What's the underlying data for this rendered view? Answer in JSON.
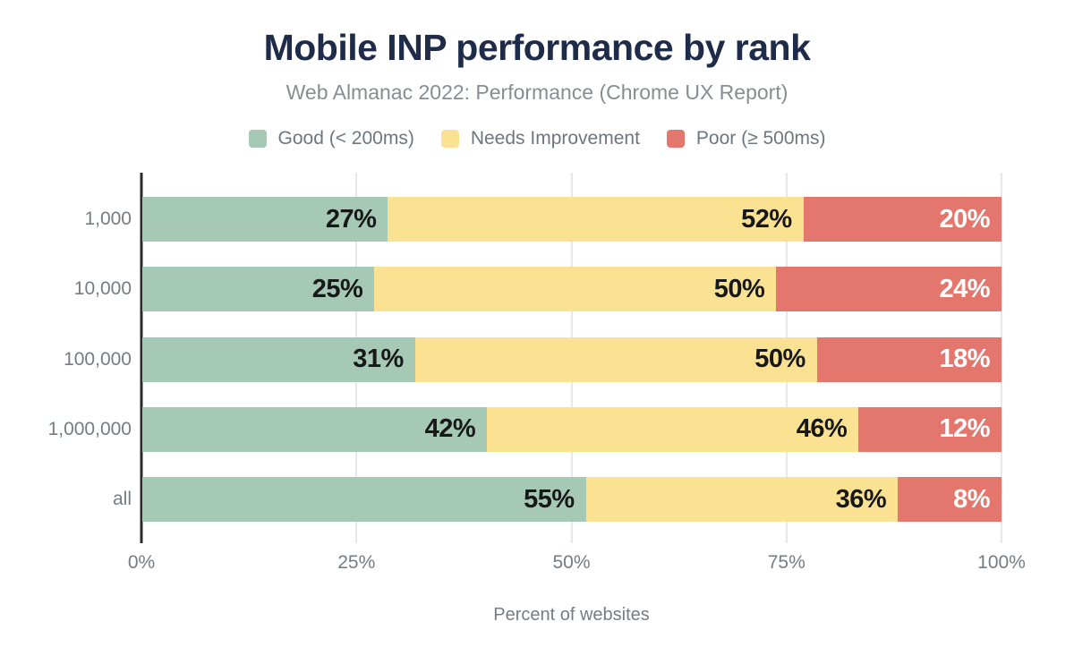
{
  "chart": {
    "title": "Mobile INP performance by rank",
    "subtitle": "Web Almanac 2022: Performance (Chrome UX Report)",
    "xlabel": "Percent of websites",
    "colors": {
      "good": "#A5C9B4",
      "needs_improvement": "#FBE292",
      "poor": "#E3776D",
      "title": "#1E2B49",
      "subtitle": "#888D93",
      "axis_text": "#757C82",
      "legend_text": "#6E767D",
      "gridline": "#E8E8E8",
      "axis_line": "#2B2B2B",
      "label_dark": "#17181A",
      "label_light": "#FFFFFF"
    }
  },
  "chart_data": {
    "type": "bar",
    "orientation": "horizontal",
    "stacked": true,
    "normalized_to_100": true,
    "title": "Mobile INP performance by rank",
    "subtitle": "Web Almanac 2022: Performance (Chrome UX Report)",
    "xlabel": "Percent of websites",
    "ylabel": "",
    "xlim": [
      0,
      100
    ],
    "grid": "vertical",
    "legend_position": "top",
    "value_suffix": "%",
    "categories": [
      "1,000",
      "10,000",
      "100,000",
      "1,000,000",
      "all"
    ],
    "x_ticks": [
      {
        "label": "0%",
        "value": 0
      },
      {
        "label": "25%",
        "value": 25
      },
      {
        "label": "50%",
        "value": 50
      },
      {
        "label": "75%",
        "value": 75
      },
      {
        "label": "100%",
        "value": 100
      }
    ],
    "series": [
      {
        "name": "Good (< 200ms)",
        "color_key": "good",
        "label_style": "dark",
        "values": [
          27,
          25,
          31,
          42,
          55
        ]
      },
      {
        "name": "Needs Improvement",
        "color_key": "needs_improvement",
        "label_style": "dark",
        "values": [
          52,
          50,
          50,
          46,
          36
        ]
      },
      {
        "name": "Poor (≥ 500ms)",
        "color_key": "poor",
        "label_style": "light",
        "values": [
          20,
          24,
          18,
          12,
          8
        ]
      }
    ]
  }
}
